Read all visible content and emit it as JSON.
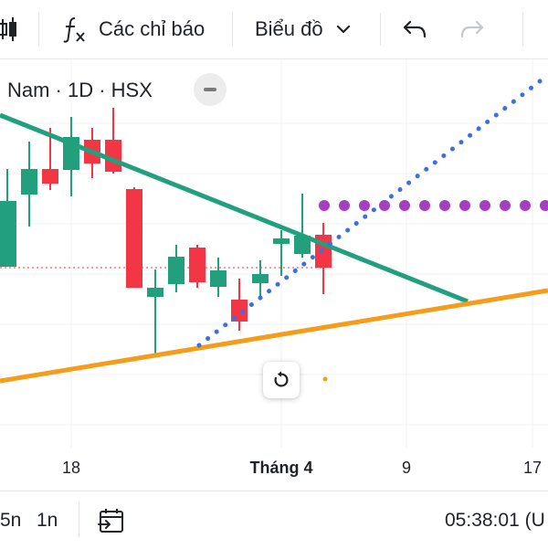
{
  "toolbar": {
    "indicators_label": "Các chỉ báo",
    "chart_type_label": "Biểu đồ",
    "icons": [
      "candles-icon",
      "fx-icon",
      "chevron-down-icon",
      "undo-icon",
      "redo-icon"
    ]
  },
  "legend": {
    "symbol_text": "Nam · 1D · HSX"
  },
  "x_axis": {
    "labels": [
      "18",
      "Tháng 4",
      "9",
      "17"
    ]
  },
  "bottom_bar": {
    "ranges": [
      "5n",
      "1n"
    ],
    "clock": "05:38:01 (U"
  },
  "colors": {
    "up": "#22a07d",
    "down": "#f23645",
    "trend_green": "#22a07d",
    "trend_orange": "#f59c1a",
    "dotted_blue": "#3d6fe0",
    "dotted_purple": "#a33fc0",
    "price_line": "#f23645"
  }
}
